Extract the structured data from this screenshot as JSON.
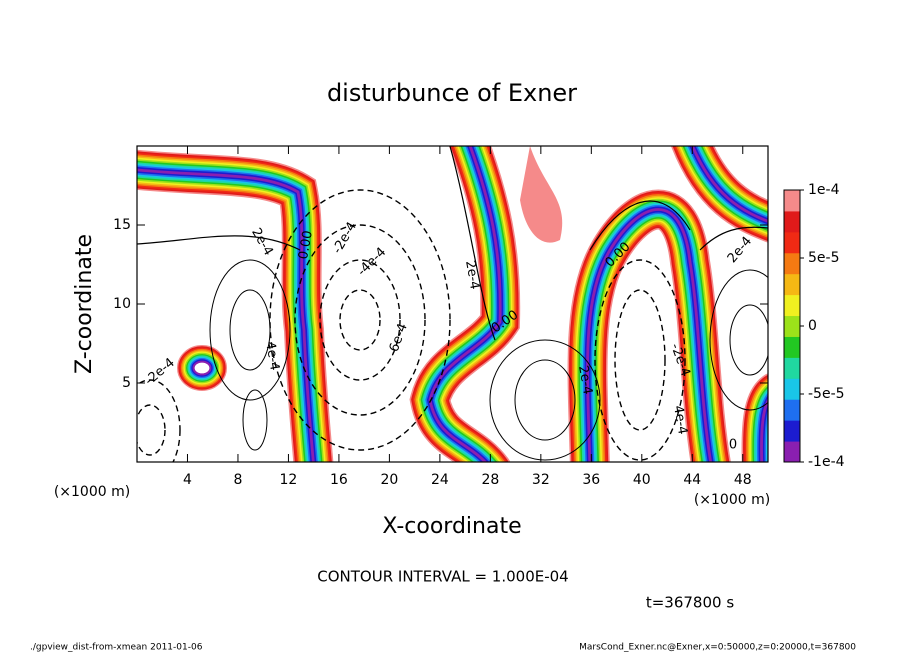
{
  "chart_data": {
    "type": "contour",
    "title": "disturbunce of Exner",
    "x_label": "X-coordinate",
    "y_label": "Z-coordinate",
    "x_unit": "(×1000 m)",
    "y_unit": "(×1000 m)",
    "xlim": [
      0,
      50
    ],
    "ylim": [
      0,
      20
    ],
    "xticks": [
      4,
      8,
      12,
      16,
      20,
      24,
      28,
      32,
      36,
      40,
      44,
      48
    ],
    "yticks": [
      5,
      10,
      15
    ],
    "colorbar": {
      "lim": [
        -0.0001,
        0.0001
      ],
      "ticks": [
        {
          "value": 0.0001,
          "label": "1e-4"
        },
        {
          "value": 5e-05,
          "label": "5e-5"
        },
        {
          "value": 0,
          "label": "0"
        },
        {
          "value": -5e-05,
          "label": "-5e-5"
        },
        {
          "value": -0.0001,
          "label": "-1e-4"
        }
      ],
      "colors": [
        "#8a1fb0",
        "#1c1cd0",
        "#1e6ff0",
        "#19c6e8",
        "#20d8a0",
        "#22c822",
        "#9ce21a",
        "#f0f020",
        "#f5b814",
        "#f57a12",
        "#f02a14",
        "#e01a1a",
        "#f58a8a"
      ]
    },
    "contour_labels": [
      "2e-4",
      "0.00",
      "-2e-4",
      "-4e-4",
      "-6e-4",
      "2e-4",
      "0.00",
      "-2e-4",
      "4e-4",
      "0.00",
      "2e-4",
      "2e-4",
      "-2e-4",
      "4e-4",
      "0"
    ],
    "contour_interval": "CONTOUR INTERVAL = 1.000E-04",
    "time_label": "t=367800 s",
    "footer_left": "./gpview_dist-from-xmean  2011-01-06",
    "footer_right": "MarsCond_Exner.nc@Exner,x=0:50000,z=0:20000,t=367800"
  }
}
